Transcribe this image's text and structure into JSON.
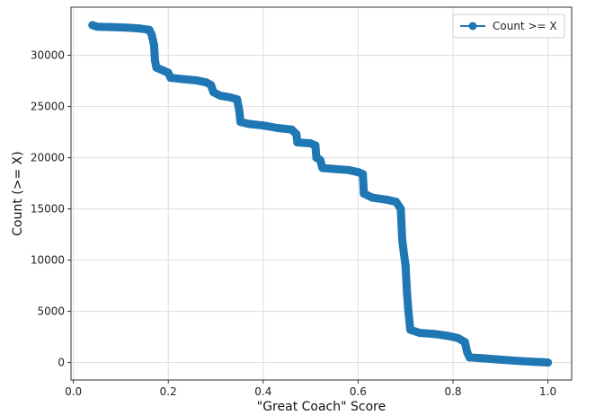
{
  "chart_data": {
    "type": "line",
    "title": "",
    "xlabel": "\"Great Coach\" Score",
    "ylabel": "Count (>= X)",
    "xlim": [
      -0.005,
      1.05
    ],
    "ylim": [
      -1700,
      34700
    ],
    "x_ticks": [
      0.0,
      0.2,
      0.4,
      0.6,
      0.8,
      1.0
    ],
    "x_tick_labels": [
      "0.0",
      "0.2",
      "0.4",
      "0.6",
      "0.8",
      "1.0"
    ],
    "y_ticks": [
      0,
      5000,
      10000,
      15000,
      20000,
      25000,
      30000
    ],
    "y_tick_labels": [
      "0",
      "5000",
      "10000",
      "15000",
      "20000",
      "25000",
      "30000"
    ],
    "grid": true,
    "legend": {
      "position": "top-right"
    },
    "colors": {
      "series": "#1f77b4",
      "grid": "#dddddd",
      "axis": "#333333"
    },
    "series": [
      {
        "name": "Count >= X",
        "marker": "circle",
        "points": [
          [
            0.04,
            32950
          ],
          [
            0.05,
            32800
          ],
          [
            0.06,
            32780
          ],
          [
            0.08,
            32760
          ],
          [
            0.1,
            32730
          ],
          [
            0.12,
            32680
          ],
          [
            0.14,
            32620
          ],
          [
            0.16,
            32480
          ],
          [
            0.165,
            32000
          ],
          [
            0.17,
            31000
          ],
          [
            0.172,
            29500
          ],
          [
            0.175,
            28800
          ],
          [
            0.19,
            28500
          ],
          [
            0.2,
            28300
          ],
          [
            0.205,
            27800
          ],
          [
            0.23,
            27680
          ],
          [
            0.26,
            27550
          ],
          [
            0.28,
            27350
          ],
          [
            0.29,
            27100
          ],
          [
            0.295,
            26400
          ],
          [
            0.31,
            26050
          ],
          [
            0.33,
            25900
          ],
          [
            0.345,
            25700
          ],
          [
            0.35,
            24500
          ],
          [
            0.352,
            23500
          ],
          [
            0.37,
            23300
          ],
          [
            0.4,
            23150
          ],
          [
            0.43,
            22900
          ],
          [
            0.46,
            22750
          ],
          [
            0.47,
            22300
          ],
          [
            0.472,
            21500
          ],
          [
            0.5,
            21400
          ],
          [
            0.51,
            21200
          ],
          [
            0.512,
            20000
          ],
          [
            0.52,
            19800
          ],
          [
            0.525,
            19000
          ],
          [
            0.55,
            18900
          ],
          [
            0.58,
            18800
          ],
          [
            0.6,
            18600
          ],
          [
            0.61,
            18400
          ],
          [
            0.612,
            16500
          ],
          [
            0.63,
            16100
          ],
          [
            0.66,
            15900
          ],
          [
            0.68,
            15700
          ],
          [
            0.69,
            15000
          ],
          [
            0.693,
            12000
          ],
          [
            0.697,
            10500
          ],
          [
            0.7,
            9500
          ],
          [
            0.703,
            6800
          ],
          [
            0.706,
            5000
          ],
          [
            0.71,
            3200
          ],
          [
            0.73,
            2900
          ],
          [
            0.76,
            2800
          ],
          [
            0.79,
            2600
          ],
          [
            0.81,
            2400
          ],
          [
            0.825,
            2000
          ],
          [
            0.83,
            1000
          ],
          [
            0.835,
            500
          ],
          [
            0.86,
            420
          ],
          [
            0.9,
            280
          ],
          [
            0.94,
            150
          ],
          [
            0.97,
            80
          ],
          [
            0.99,
            40
          ],
          [
            1.0,
            1
          ]
        ]
      }
    ]
  }
}
